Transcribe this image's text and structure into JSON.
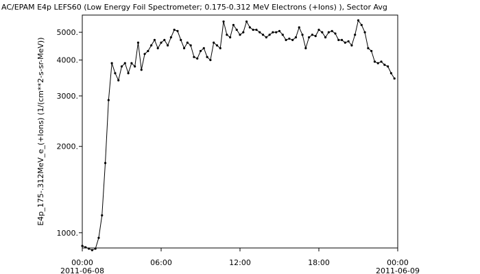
{
  "chart_data": {
    "type": "line",
    "title": "AC/EPAM  E4p LEFS60 (Low Energy Foil Spectrometer; 0.175-0.312 MeV Electrons (+Ions) ), Sector Avg",
    "y_label": "E4p_175-.312MeV_e_(+Ions) (1/(cm**2-s-sr-MeV))",
    "color": "#000000",
    "log_y": true,
    "xlim": [
      "2011-06-08 00:00",
      "2011-06-09 00:00"
    ],
    "xticks": [
      {
        "value": "2011-06-08 00:00",
        "label": [
          "00:00",
          "2011-06-08"
        ]
      },
      {
        "value": "2011-06-08 06:00",
        "label": "06:00"
      },
      {
        "value": "2011-06-08 12:00",
        "label": "12:00"
      },
      {
        "value": "2011-06-08 18:00",
        "label": "18:00"
      },
      {
        "value": "2011-06-09 00:00",
        "label": [
          "00:00",
          "2011-06-09"
        ]
      }
    ],
    "ylim": [
      885,
      5740
    ],
    "yticks": [
      {
        "value": 1000,
        "label": "1000."
      },
      {
        "value": 2000,
        "label": "2000."
      },
      {
        "value": 3000,
        "label": "3000."
      },
      {
        "value": 4000,
        "label": "4000."
      },
      {
        "value": 5000,
        "label": "5000."
      }
    ],
    "x": [
      "2011-06-08 00:00",
      "2011-06-08 00:15",
      "2011-06-08 00:30",
      "2011-06-08 00:45",
      "2011-06-08 01:00",
      "2011-06-08 01:15",
      "2011-06-08 01:30",
      "2011-06-08 01:45",
      "2011-06-08 02:00",
      "2011-06-08 02:15",
      "2011-06-08 02:30",
      "2011-06-08 02:45",
      "2011-06-08 03:00",
      "2011-06-08 03:15",
      "2011-06-08 03:30",
      "2011-06-08 03:45",
      "2011-06-08 04:00",
      "2011-06-08 04:15",
      "2011-06-08 04:30",
      "2011-06-08 04:45",
      "2011-06-08 05:00",
      "2011-06-08 05:15",
      "2011-06-08 05:30",
      "2011-06-08 05:45",
      "2011-06-08 06:00",
      "2011-06-08 06:15",
      "2011-06-08 06:30",
      "2011-06-08 06:45",
      "2011-06-08 07:00",
      "2011-06-08 07:15",
      "2011-06-08 07:30",
      "2011-06-08 07:45",
      "2011-06-08 08:00",
      "2011-06-08 08:15",
      "2011-06-08 08:30",
      "2011-06-08 08:45",
      "2011-06-08 09:00",
      "2011-06-08 09:15",
      "2011-06-08 09:30",
      "2011-06-08 09:45",
      "2011-06-08 10:00",
      "2011-06-08 10:15",
      "2011-06-08 10:30",
      "2011-06-08 10:45",
      "2011-06-08 11:00",
      "2011-06-08 11:15",
      "2011-06-08 11:30",
      "2011-06-08 11:45",
      "2011-06-08 12:00",
      "2011-06-08 12:15",
      "2011-06-08 12:30",
      "2011-06-08 12:45",
      "2011-06-08 13:00",
      "2011-06-08 13:15",
      "2011-06-08 13:30",
      "2011-06-08 13:45",
      "2011-06-08 14:00",
      "2011-06-08 14:15",
      "2011-06-08 14:30",
      "2011-06-08 14:45",
      "2011-06-08 15:00",
      "2011-06-08 15:15",
      "2011-06-08 15:30",
      "2011-06-08 15:45",
      "2011-06-08 16:00",
      "2011-06-08 16:15",
      "2011-06-08 16:30",
      "2011-06-08 16:45",
      "2011-06-08 17:00",
      "2011-06-08 17:15",
      "2011-06-08 17:30",
      "2011-06-08 17:45",
      "2011-06-08 18:00",
      "2011-06-08 18:15",
      "2011-06-08 18:30",
      "2011-06-08 18:45",
      "2011-06-08 19:00",
      "2011-06-08 19:15",
      "2011-06-08 19:30",
      "2011-06-08 19:45",
      "2011-06-08 20:00",
      "2011-06-08 20:15",
      "2011-06-08 20:30",
      "2011-06-08 20:45",
      "2011-06-08 21:00",
      "2011-06-08 21:15",
      "2011-06-08 21:30",
      "2011-06-08 21:45",
      "2011-06-08 22:00",
      "2011-06-08 22:15",
      "2011-06-08 22:30",
      "2011-06-08 22:45",
      "2011-06-08 23:00",
      "2011-06-08 23:15",
      "2011-06-08 23:30",
      "2011-06-08 23:45"
    ],
    "values": [
      900,
      890,
      880,
      870,
      880,
      960,
      1150,
      1750,
      2900,
      3900,
      3600,
      3400,
      3800,
      3900,
      3600,
      3900,
      3800,
      4600,
      3700,
      4200,
      4300,
      4500,
      4700,
      4400,
      4600,
      4700,
      4500,
      4800,
      5100,
      5050,
      4700,
      4400,
      4600,
      4500,
      4100,
      4050,
      4300,
      4400,
      4100,
      4000,
      4600,
      4500,
      4400,
      5450,
      4900,
      4800,
      5300,
      5100,
      4900,
      5000,
      5450,
      5200,
      5100,
      5100,
      5000,
      4900,
      4800,
      4900,
      5000,
      5000,
      5050,
      4900,
      4700,
      4750,
      4700,
      4800,
      5200,
      4900,
      4400,
      4800,
      4900,
      4850,
      5100,
      5000,
      4800,
      5000,
      5050,
      4950,
      4700,
      4700,
      4600,
      4650,
      4500,
      4900,
      5500,
      5300,
      5000,
      4400,
      4300,
      3950,
      3900,
      3950,
      3850,
      3800,
      3600,
      3450
    ]
  }
}
